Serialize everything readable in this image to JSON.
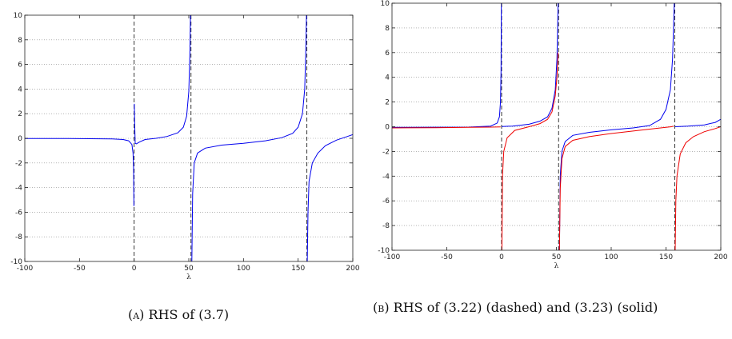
{
  "captions": {
    "a_tag": "(a)",
    "a_text": "RHS of (3.7)",
    "b_tag": "(b)",
    "b_text": "RHS of (3.22) (dashed) and (3.23) (solid)"
  },
  "chart_data": [
    {
      "type": "line",
      "panel": "A",
      "title": "",
      "xlabel": "λ",
      "ylabel": "",
      "xlim": [
        -100,
        200
      ],
      "ylim": [
        -10,
        10
      ],
      "grid": "horizontal dotted",
      "xticks": [
        -100,
        -50,
        0,
        50,
        100,
        150,
        200
      ],
      "yticks": [
        -10,
        -8,
        -6,
        -4,
        -2,
        0,
        2,
        4,
        6,
        8,
        10
      ],
      "asymptotes": [
        0,
        52,
        158
      ],
      "series": [
        {
          "style": "solid",
          "color": "#0000ee",
          "segments": [
            [
              [
                -100,
                -0.02
              ],
              [
                -80,
                -0.02
              ],
              [
                -60,
                -0.02
              ],
              [
                -40,
                -0.03
              ],
              [
                -20,
                -0.05
              ],
              [
                -10,
                -0.1
              ],
              [
                -5,
                -0.2
              ],
              [
                -2,
                -0.5
              ],
              [
                -1,
                -1.2
              ],
              [
                -0.5,
                -2.5
              ],
              [
                -0.2,
                -5.5
              ]
            ],
            [
              [
                0.2,
                2.8
              ],
              [
                0.5,
                1.3
              ],
              [
                1,
                -0.4
              ],
              [
                2,
                -0.45
              ],
              [
                5,
                -0.3
              ],
              [
                10,
                -0.1
              ],
              [
                20,
                0.0
              ],
              [
                30,
                0.15
              ],
              [
                40,
                0.45
              ],
              [
                45,
                0.9
              ],
              [
                48,
                1.8
              ],
              [
                50,
                3.8
              ],
              [
                51,
                7.0
              ],
              [
                51.5,
                10
              ]
            ],
            [
              [
                52.8,
                -10
              ],
              [
                53.5,
                -4.5
              ],
              [
                55,
                -2.0
              ],
              [
                58,
                -1.2
              ],
              [
                65,
                -0.8
              ],
              [
                80,
                -0.55
              ],
              [
                100,
                -0.4
              ],
              [
                120,
                -0.2
              ],
              [
                135,
                0.05
              ],
              [
                145,
                0.4
              ],
              [
                150,
                0.9
              ],
              [
                154,
                2.0
              ],
              [
                156,
                4.0
              ],
              [
                157,
                7.0
              ],
              [
                157.6,
                10
              ]
            ],
            [
              [
                158.4,
                -10
              ],
              [
                159,
                -6
              ],
              [
                160,
                -3.5
              ],
              [
                163,
                -2.0
              ],
              [
                168,
                -1.2
              ],
              [
                175,
                -0.6
              ],
              [
                185,
                -0.15
              ],
              [
                195,
                0.15
              ],
              [
                200,
                0.3
              ]
            ]
          ]
        }
      ]
    },
    {
      "type": "line",
      "panel": "B",
      "title": "",
      "xlabel": "λ",
      "ylabel": "",
      "xlim": [
        -100,
        200
      ],
      "ylim": [
        -10,
        10
      ],
      "grid": "horizontal dotted",
      "xticks": [
        -100,
        -50,
        0,
        50,
        100,
        150,
        200
      ],
      "yticks": [
        -10,
        -8,
        -6,
        -4,
        -2,
        0,
        2,
        4,
        6,
        8,
        10
      ],
      "asymptotes": [
        0,
        52,
        158
      ],
      "series": [
        {
          "style": "solid",
          "color": "#0000ee",
          "segments": [
            [
              [
                -100,
                -0.05
              ],
              [
                -60,
                -0.04
              ],
              [
                -30,
                -0.03
              ],
              [
                -10,
                0.05
              ],
              [
                -4,
                0.3
              ],
              [
                -2,
                0.8
              ],
              [
                -1,
                2.0
              ],
              [
                -0.5,
                4.5
              ],
              [
                -0.2,
                10
              ]
            ],
            [
              [
                0.2,
                0.02
              ],
              [
                10,
                0.05
              ],
              [
                25,
                0.2
              ],
              [
                35,
                0.45
              ],
              [
                42,
                0.8
              ],
              [
                46,
                1.5
              ],
              [
                49,
                3.0
              ],
              [
                50.5,
                5.5
              ],
              [
                51.5,
                10
              ]
            ],
            [
              [
                52.8,
                -10
              ],
              [
                53.5,
                -4.0
              ],
              [
                55,
                -2.0
              ],
              [
                58,
                -1.2
              ],
              [
                65,
                -0.7
              ],
              [
                80,
                -0.45
              ],
              [
                100,
                -0.25
              ],
              [
                120,
                -0.1
              ],
              [
                135,
                0.1
              ],
              [
                145,
                0.6
              ],
              [
                150,
                1.4
              ],
              [
                154,
                3.0
              ],
              [
                156,
                5.5
              ],
              [
                157.5,
                10
              ]
            ],
            [
              [
                158.4,
                0.0
              ],
              [
                170,
                0.05
              ],
              [
                185,
                0.15
              ],
              [
                195,
                0.35
              ],
              [
                200,
                0.6
              ]
            ]
          ]
        },
        {
          "style": "solid",
          "color": "#ee0000",
          "segments": [
            [
              [
                -100,
                -0.1
              ],
              [
                -60,
                -0.08
              ],
              [
                -30,
                -0.05
              ],
              [
                -10,
                -0.03
              ],
              [
                -1,
                -0.01
              ]
            ],
            [
              [
                0.3,
                -10
              ],
              [
                0.8,
                -4.0
              ],
              [
                2,
                -2.0
              ],
              [
                5,
                -0.9
              ],
              [
                12,
                -0.3
              ],
              [
                25,
                0.0
              ],
              [
                35,
                0.25
              ],
              [
                42,
                0.6
              ],
              [
                46,
                1.2
              ],
              [
                49,
                2.5
              ],
              [
                50.5,
                4.0
              ],
              [
                51.5,
                6.0
              ]
            ],
            [
              [
                52.8,
                -10
              ],
              [
                53.5,
                -5.0
              ],
              [
                55,
                -2.6
              ],
              [
                58,
                -1.6
              ],
              [
                65,
                -1.1
              ],
              [
                80,
                -0.8
              ],
              [
                100,
                -0.55
              ],
              [
                120,
                -0.35
              ],
              [
                140,
                -0.15
              ],
              [
                155,
                0.0
              ],
              [
                157,
                0.05
              ]
            ],
            [
              [
                158.4,
                -10
              ],
              [
                159,
                -6
              ],
              [
                160,
                -4.0
              ],
              [
                163,
                -2.2
              ],
              [
                168,
                -1.3
              ],
              [
                175,
                -0.8
              ],
              [
                185,
                -0.4
              ],
              [
                195,
                -0.15
              ],
              [
                200,
                0.0
              ]
            ]
          ]
        }
      ]
    }
  ]
}
